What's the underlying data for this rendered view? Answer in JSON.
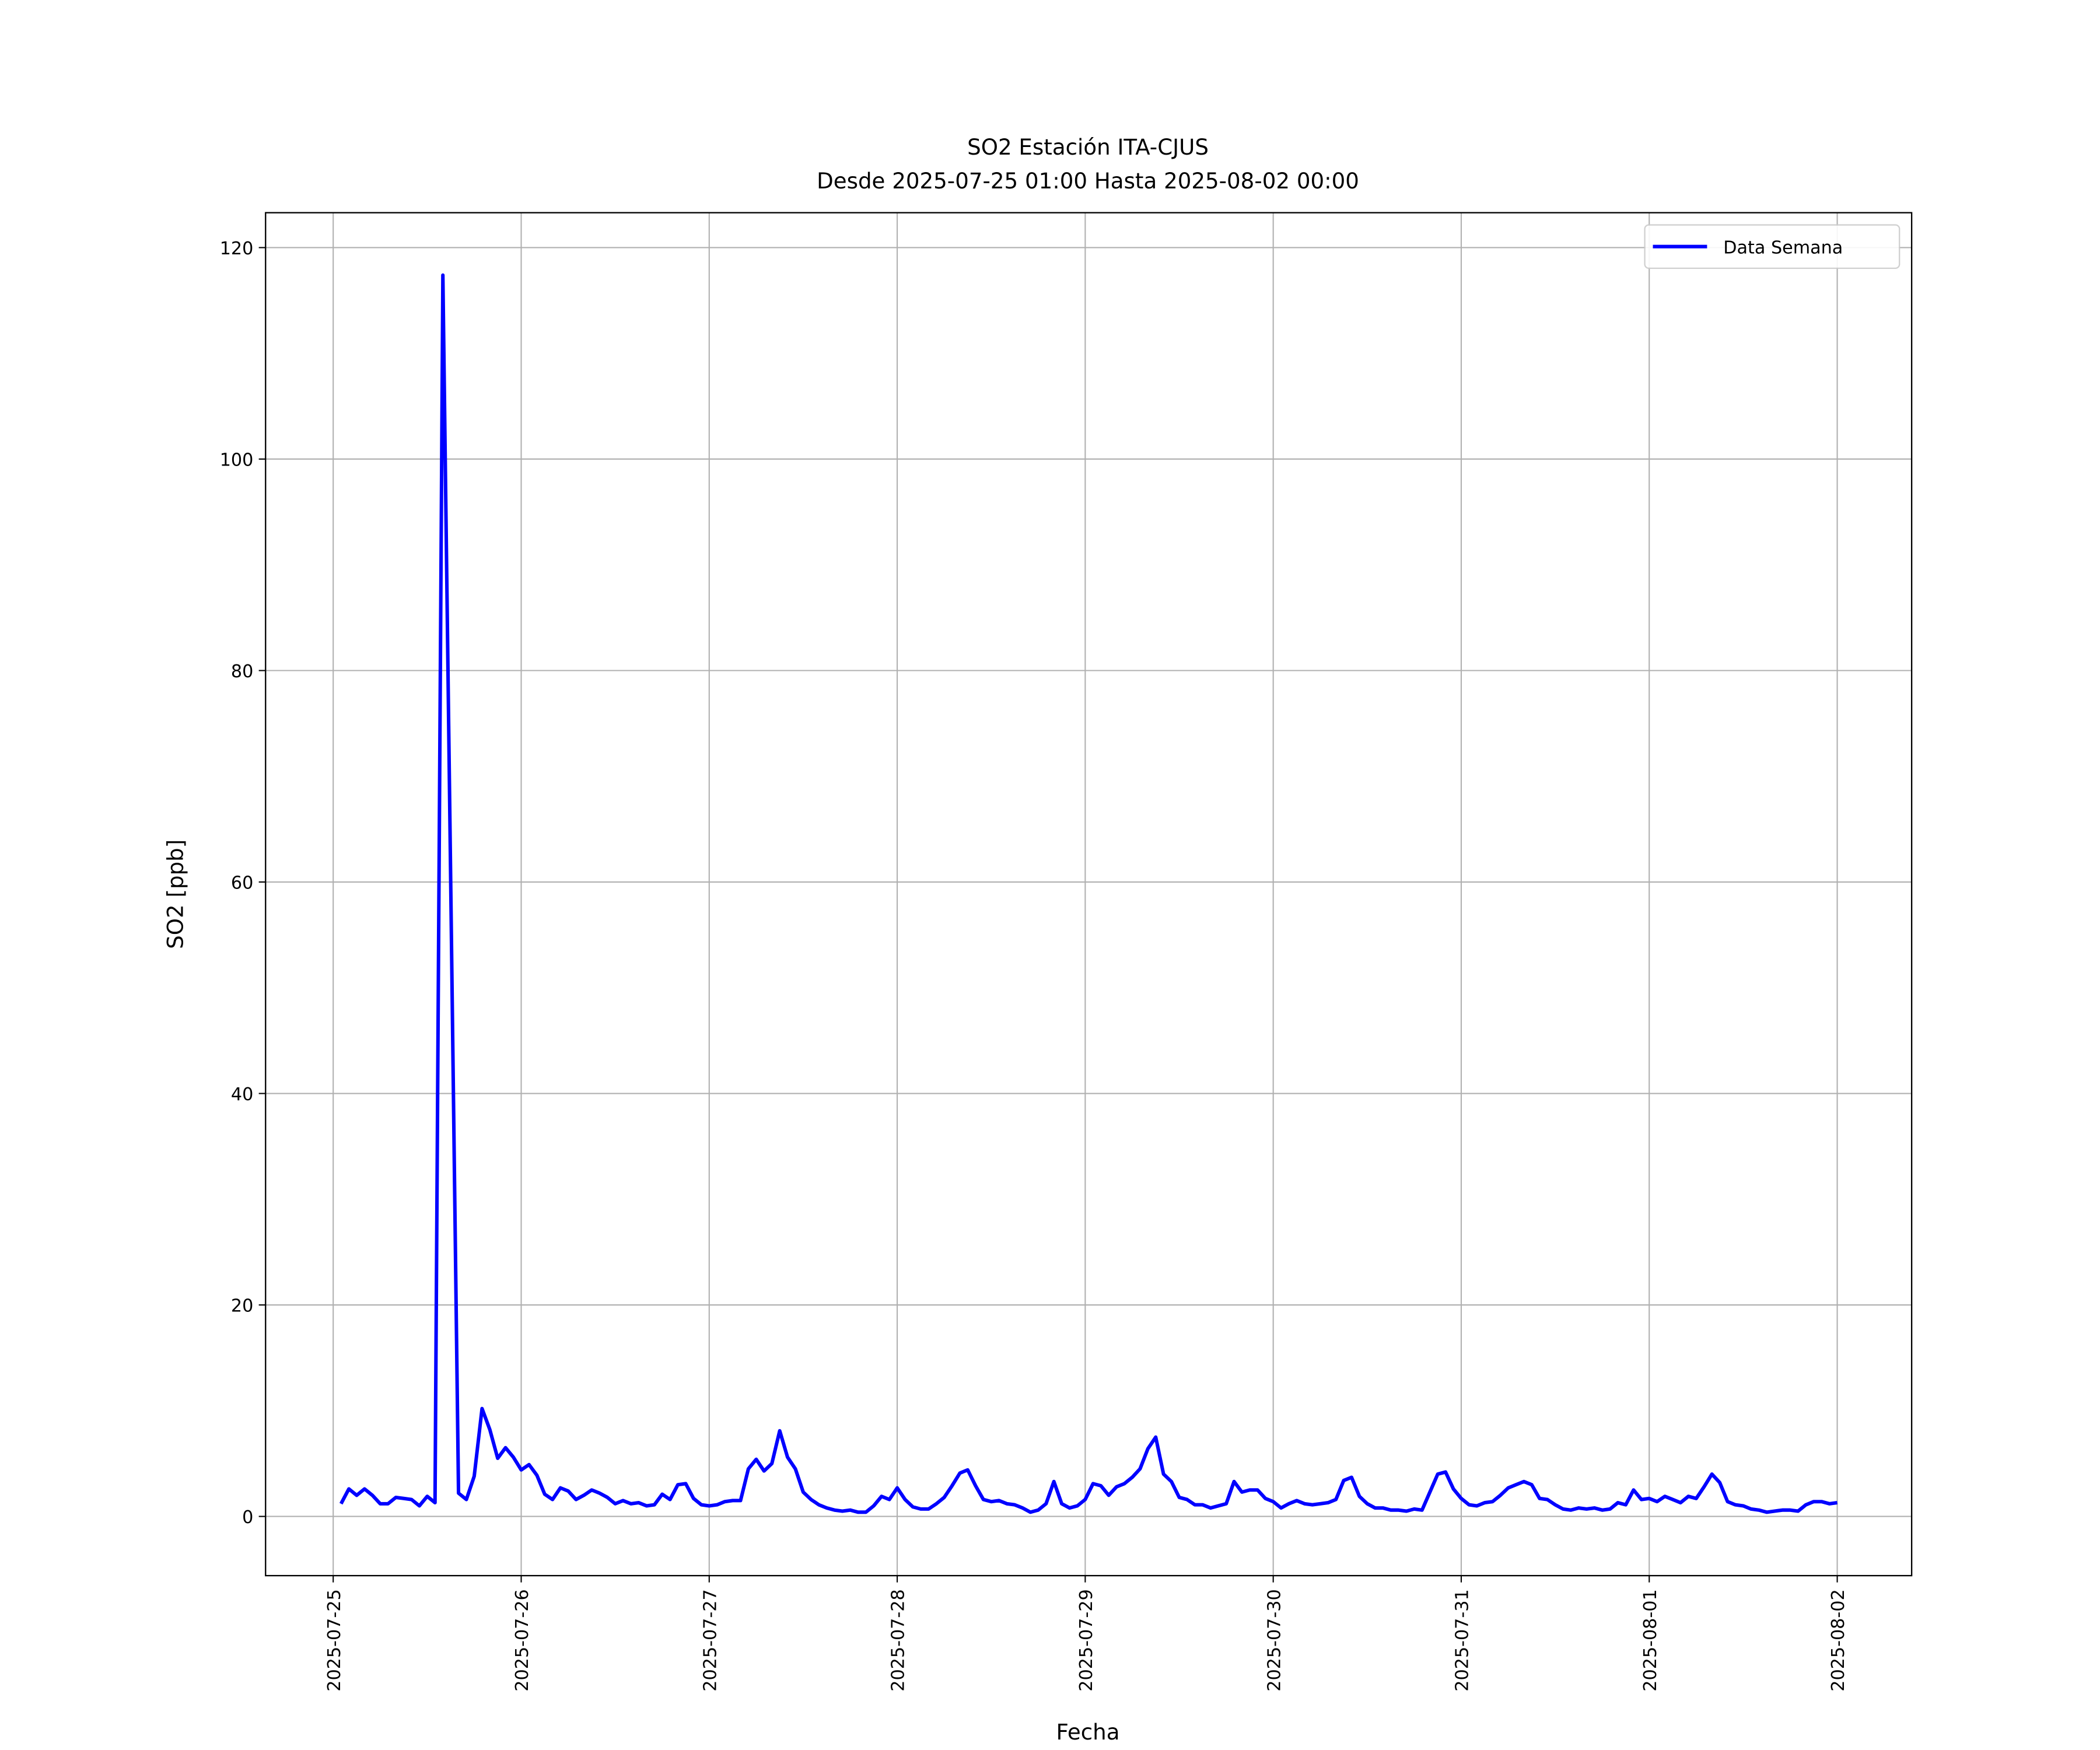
{
  "chart_data": {
    "type": "line",
    "title": "SO2 Estación ITA-CJUS",
    "subtitle": "Desde 2025-07-25 01:00 Hasta 2025-08-02 00:00",
    "x_label": "Fecha",
    "y_label": "SO2 [ppb]",
    "grid": true,
    "legend": "upper right",
    "xlim": [
      "2025-07-24 15:22",
      "2025-08-02 09:30"
    ],
    "xticks": [
      "2025-07-25",
      "2025-07-26",
      "2025-07-27",
      "2025-07-28",
      "2025-07-29",
      "2025-07-30",
      "2025-07-31",
      "2025-08-01",
      "2025-08-02"
    ],
    "ylim": [
      -5.6,
      123.3
    ],
    "yticks": [
      0,
      20,
      40,
      60,
      80,
      100,
      120
    ],
    "x": [
      "2025-07-25 01:00",
      "2025-07-25 02:00",
      "2025-07-25 03:00",
      "2025-07-25 04:00",
      "2025-07-25 05:00",
      "2025-07-25 06:00",
      "2025-07-25 07:00",
      "2025-07-25 08:00",
      "2025-07-25 09:00",
      "2025-07-25 10:00",
      "2025-07-25 11:00",
      "2025-07-25 12:00",
      "2025-07-25 13:00",
      "2025-07-25 14:00",
      "2025-07-25 15:00",
      "2025-07-25 16:00",
      "2025-07-25 17:00",
      "2025-07-25 18:00",
      "2025-07-25 19:00",
      "2025-07-25 20:00",
      "2025-07-25 21:00",
      "2025-07-25 22:00",
      "2025-07-25 23:00",
      "2025-07-26 00:00",
      "2025-07-26 01:00",
      "2025-07-26 02:00",
      "2025-07-26 03:00",
      "2025-07-26 04:00",
      "2025-07-26 05:00",
      "2025-07-26 06:00",
      "2025-07-26 07:00",
      "2025-07-26 08:00",
      "2025-07-26 09:00",
      "2025-07-26 10:00",
      "2025-07-26 11:00",
      "2025-07-26 12:00",
      "2025-07-26 13:00",
      "2025-07-26 14:00",
      "2025-07-26 15:00",
      "2025-07-26 16:00",
      "2025-07-26 17:00",
      "2025-07-26 18:00",
      "2025-07-26 19:00",
      "2025-07-26 20:00",
      "2025-07-26 21:00",
      "2025-07-26 22:00",
      "2025-07-26 23:00",
      "2025-07-27 00:00",
      "2025-07-27 01:00",
      "2025-07-27 02:00",
      "2025-07-27 03:00",
      "2025-07-27 04:00",
      "2025-07-27 05:00",
      "2025-07-27 06:00",
      "2025-07-27 07:00",
      "2025-07-27 08:00",
      "2025-07-27 09:00",
      "2025-07-27 10:00",
      "2025-07-27 11:00",
      "2025-07-27 12:00",
      "2025-07-27 13:00",
      "2025-07-27 14:00",
      "2025-07-27 15:00",
      "2025-07-27 16:00",
      "2025-07-27 17:00",
      "2025-07-27 18:00",
      "2025-07-27 19:00",
      "2025-07-27 20:00",
      "2025-07-27 21:00",
      "2025-07-27 22:00",
      "2025-07-27 23:00",
      "2025-07-28 00:00",
      "2025-07-28 01:00",
      "2025-07-28 02:00",
      "2025-07-28 03:00",
      "2025-07-28 04:00",
      "2025-07-28 05:00",
      "2025-07-28 06:00",
      "2025-07-28 07:00",
      "2025-07-28 08:00",
      "2025-07-28 09:00",
      "2025-07-28 10:00",
      "2025-07-28 11:00",
      "2025-07-28 12:00",
      "2025-07-28 13:00",
      "2025-07-28 14:00",
      "2025-07-28 15:00",
      "2025-07-28 16:00",
      "2025-07-28 17:00",
      "2025-07-28 18:00",
      "2025-07-28 19:00",
      "2025-07-28 20:00",
      "2025-07-28 21:00",
      "2025-07-28 22:00",
      "2025-07-28 23:00",
      "2025-07-29 00:00",
      "2025-07-29 01:00",
      "2025-07-29 02:00",
      "2025-07-29 03:00",
      "2025-07-29 04:00",
      "2025-07-29 05:00",
      "2025-07-29 06:00",
      "2025-07-29 07:00",
      "2025-07-29 08:00",
      "2025-07-29 09:00",
      "2025-07-29 10:00",
      "2025-07-29 11:00",
      "2025-07-29 12:00",
      "2025-07-29 13:00",
      "2025-07-29 14:00",
      "2025-07-29 15:00",
      "2025-07-29 16:00",
      "2025-07-29 17:00",
      "2025-07-29 18:00",
      "2025-07-29 19:00",
      "2025-07-29 20:00",
      "2025-07-29 21:00",
      "2025-07-29 22:00",
      "2025-07-29 23:00",
      "2025-07-30 00:00",
      "2025-07-30 01:00",
      "2025-07-30 02:00",
      "2025-07-30 03:00",
      "2025-07-30 04:00",
      "2025-07-30 05:00",
      "2025-07-30 06:00",
      "2025-07-30 07:00",
      "2025-07-30 08:00",
      "2025-07-30 09:00",
      "2025-07-30 10:00",
      "2025-07-30 11:00",
      "2025-07-30 12:00",
      "2025-07-30 13:00",
      "2025-07-30 14:00",
      "2025-07-30 15:00",
      "2025-07-30 16:00",
      "2025-07-30 17:00",
      "2025-07-30 18:00",
      "2025-07-30 19:00",
      "2025-07-30 20:00",
      "2025-07-30 21:00",
      "2025-07-30 22:00",
      "2025-07-30 23:00",
      "2025-07-31 00:00",
      "2025-07-31 01:00",
      "2025-07-31 02:00",
      "2025-07-31 03:00",
      "2025-07-31 04:00",
      "2025-07-31 05:00",
      "2025-07-31 06:00",
      "2025-07-31 07:00",
      "2025-07-31 08:00",
      "2025-07-31 09:00",
      "2025-07-31 10:00",
      "2025-07-31 11:00",
      "2025-07-31 12:00",
      "2025-07-31 13:00",
      "2025-07-31 14:00",
      "2025-07-31 15:00",
      "2025-07-31 16:00",
      "2025-07-31 17:00",
      "2025-07-31 18:00",
      "2025-07-31 19:00",
      "2025-07-31 20:00",
      "2025-07-31 21:00",
      "2025-07-31 22:00",
      "2025-07-31 23:00",
      "2025-08-01 00:00",
      "2025-08-01 01:00",
      "2025-08-01 02:00",
      "2025-08-01 03:00",
      "2025-08-01 04:00",
      "2025-08-01 05:00",
      "2025-08-01 06:00",
      "2025-08-01 07:00",
      "2025-08-01 08:00",
      "2025-08-01 09:00",
      "2025-08-01 10:00",
      "2025-08-01 11:00",
      "2025-08-01 12:00",
      "2025-08-01 13:00",
      "2025-08-01 14:00",
      "2025-08-01 15:00",
      "2025-08-01 16:00",
      "2025-08-01 17:00",
      "2025-08-01 18:00",
      "2025-08-01 19:00",
      "2025-08-01 20:00",
      "2025-08-01 21:00",
      "2025-08-01 22:00",
      "2025-08-01 23:00",
      "2025-08-02 00:00"
    ],
    "series": [
      {
        "name": "Data Semana",
        "color": "#0000ff",
        "values": [
          1.2,
          2.6,
          2.0,
          2.6,
          2.0,
          1.2,
          1.2,
          1.8,
          1.7,
          1.6,
          1.0,
          1.9,
          1.3,
          117.4,
          60.0,
          2.2,
          1.6,
          3.8,
          10.2,
          8.2,
          5.5,
          6.5,
          5.6,
          4.4,
          4.9,
          3.9,
          2.1,
          1.6,
          2.7,
          2.4,
          1.6,
          2.0,
          2.5,
          2.2,
          1.8,
          1.2,
          1.5,
          1.2,
          1.3,
          1.0,
          1.1,
          2.1,
          1.6,
          3.0,
          3.1,
          1.7,
          1.1,
          1.0,
          1.1,
          1.4,
          1.5,
          1.5,
          4.5,
          5.4,
          4.3,
          5.0,
          8.1,
          5.6,
          4.5,
          2.3,
          1.6,
          1.1,
          0.8,
          0.6,
          0.5,
          0.6,
          0.4,
          0.4,
          1.0,
          1.9,
          1.6,
          2.7,
          1.6,
          0.9,
          0.7,
          0.7,
          1.2,
          1.8,
          2.9,
          4.1,
          4.4,
          2.9,
          1.6,
          1.4,
          1.5,
          1.2,
          1.1,
          0.8,
          0.4,
          0.6,
          1.2,
          3.3,
          1.2,
          0.8,
          1.0,
          1.6,
          3.1,
          2.9,
          2.0,
          2.8,
          3.1,
          3.7,
          4.5,
          6.4,
          7.5,
          4.0,
          3.3,
          1.8,
          1.6,
          1.1,
          1.1,
          0.8,
          1.0,
          1.2,
          3.3,
          2.3,
          2.5,
          2.5,
          1.7,
          1.4,
          0.8,
          1.2,
          1.5,
          1.2,
          1.1,
          1.2,
          1.3,
          1.6,
          3.4,
          3.7,
          1.9,
          1.2,
          0.8,
          0.8,
          0.6,
          0.6,
          0.5,
          0.7,
          0.6,
          2.3,
          4.0,
          4.2,
          2.6,
          1.7,
          1.1,
          1.0,
          1.3,
          1.4,
          2.0,
          2.7,
          3.0,
          3.3,
          3.0,
          1.7,
          1.6,
          1.1,
          0.7,
          0.6,
          0.8,
          0.7,
          0.8,
          0.6,
          0.7,
          1.3,
          1.1,
          2.5,
          1.6,
          1.7,
          1.4,
          1.9,
          1.6,
          1.3,
          1.9,
          1.7,
          2.8,
          4.0,
          3.2,
          1.4,
          1.1,
          1.0,
          0.7,
          0.6,
          0.4,
          0.5,
          0.6,
          0.6,
          0.5,
          1.1,
          1.4,
          1.4,
          1.2,
          1.3
        ]
      }
    ]
  }
}
